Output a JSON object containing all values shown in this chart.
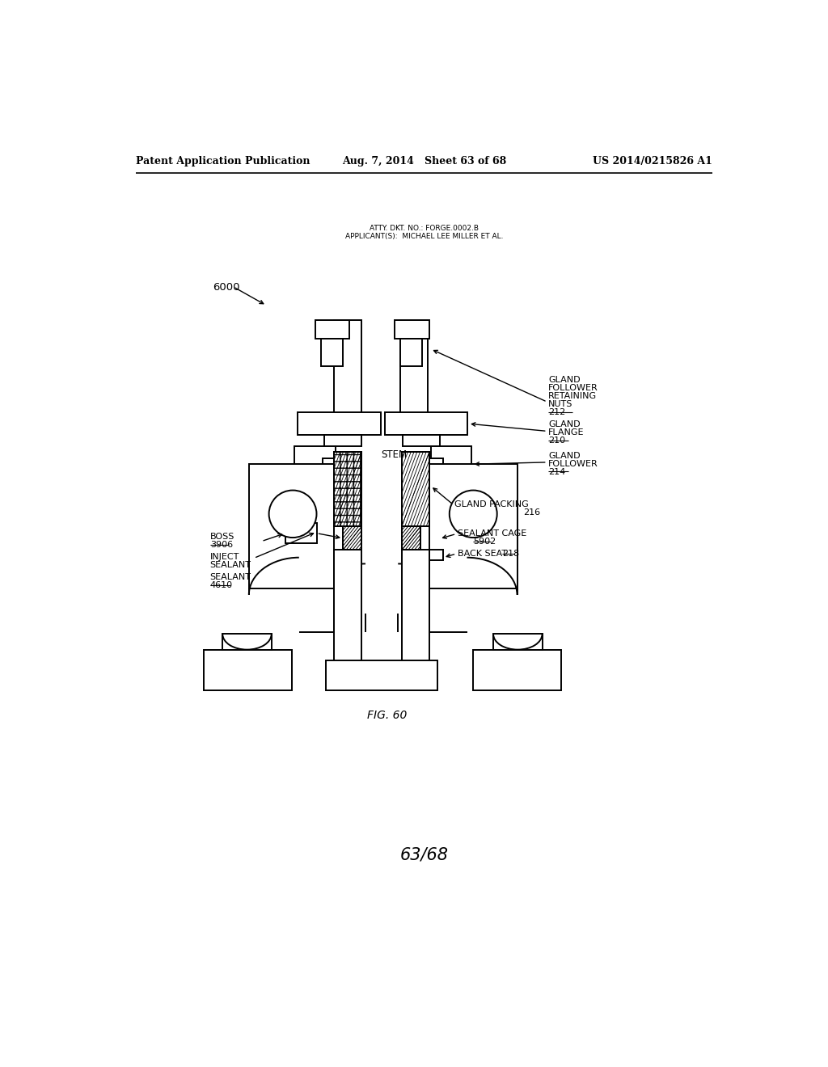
{
  "bg_color": "#ffffff",
  "header_left": "Patent Application Publication",
  "header_center": "Aug. 7, 2014   Sheet 63 of 68",
  "header_right": "US 2014/0215826 A1",
  "atty_line1": "ATTY. DKT. NO.: FORGE.0002.B",
  "atty_line2": "APPLICANT(S):  MICHAEL LEE MILLER ET AL.",
  "fig_label": "FIG. 60",
  "page_num": "63/68",
  "ref_6000": "6000"
}
